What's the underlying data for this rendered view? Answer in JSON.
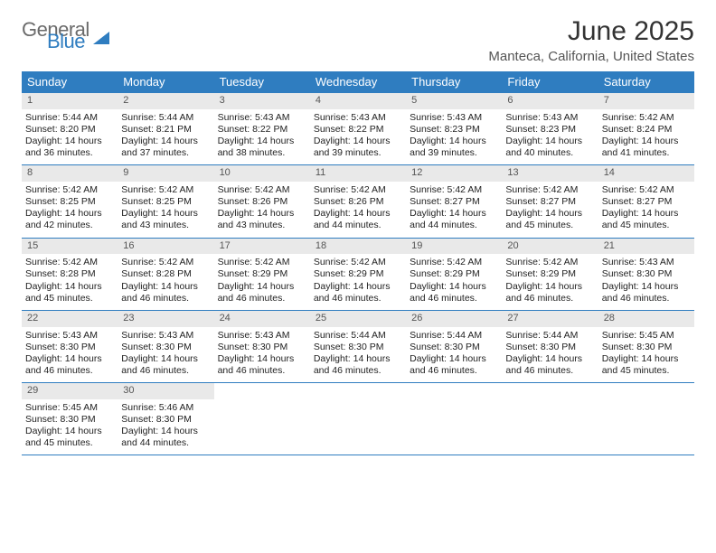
{
  "logo": {
    "word1": "General",
    "word2": "Blue"
  },
  "title": "June 2025",
  "location": "Manteca, California, United States",
  "colors": {
    "header_bg": "#2f7dc0",
    "header_text": "#ffffff",
    "daynum_bg": "#e9e9e9",
    "border": "#2f7dc0",
    "logo_gray": "#6b6b6b",
    "logo_blue": "#2f7dc0"
  },
  "typography": {
    "title_fontsize": 30,
    "location_fontsize": 15,
    "dow_fontsize": 13,
    "cell_fontsize": 10.5
  },
  "days_of_week": [
    "Sunday",
    "Monday",
    "Tuesday",
    "Wednesday",
    "Thursday",
    "Friday",
    "Saturday"
  ],
  "weeks": [
    [
      {
        "n": "1",
        "sr": "Sunrise: 5:44 AM",
        "ss": "Sunset: 8:20 PM",
        "dl": "Daylight: 14 hours and 36 minutes."
      },
      {
        "n": "2",
        "sr": "Sunrise: 5:44 AM",
        "ss": "Sunset: 8:21 PM",
        "dl": "Daylight: 14 hours and 37 minutes."
      },
      {
        "n": "3",
        "sr": "Sunrise: 5:43 AM",
        "ss": "Sunset: 8:22 PM",
        "dl": "Daylight: 14 hours and 38 minutes."
      },
      {
        "n": "4",
        "sr": "Sunrise: 5:43 AM",
        "ss": "Sunset: 8:22 PM",
        "dl": "Daylight: 14 hours and 39 minutes."
      },
      {
        "n": "5",
        "sr": "Sunrise: 5:43 AM",
        "ss": "Sunset: 8:23 PM",
        "dl": "Daylight: 14 hours and 39 minutes."
      },
      {
        "n": "6",
        "sr": "Sunrise: 5:43 AM",
        "ss": "Sunset: 8:23 PM",
        "dl": "Daylight: 14 hours and 40 minutes."
      },
      {
        "n": "7",
        "sr": "Sunrise: 5:42 AM",
        "ss": "Sunset: 8:24 PM",
        "dl": "Daylight: 14 hours and 41 minutes."
      }
    ],
    [
      {
        "n": "8",
        "sr": "Sunrise: 5:42 AM",
        "ss": "Sunset: 8:25 PM",
        "dl": "Daylight: 14 hours and 42 minutes."
      },
      {
        "n": "9",
        "sr": "Sunrise: 5:42 AM",
        "ss": "Sunset: 8:25 PM",
        "dl": "Daylight: 14 hours and 43 minutes."
      },
      {
        "n": "10",
        "sr": "Sunrise: 5:42 AM",
        "ss": "Sunset: 8:26 PM",
        "dl": "Daylight: 14 hours and 43 minutes."
      },
      {
        "n": "11",
        "sr": "Sunrise: 5:42 AM",
        "ss": "Sunset: 8:26 PM",
        "dl": "Daylight: 14 hours and 44 minutes."
      },
      {
        "n": "12",
        "sr": "Sunrise: 5:42 AM",
        "ss": "Sunset: 8:27 PM",
        "dl": "Daylight: 14 hours and 44 minutes."
      },
      {
        "n": "13",
        "sr": "Sunrise: 5:42 AM",
        "ss": "Sunset: 8:27 PM",
        "dl": "Daylight: 14 hours and 45 minutes."
      },
      {
        "n": "14",
        "sr": "Sunrise: 5:42 AM",
        "ss": "Sunset: 8:27 PM",
        "dl": "Daylight: 14 hours and 45 minutes."
      }
    ],
    [
      {
        "n": "15",
        "sr": "Sunrise: 5:42 AM",
        "ss": "Sunset: 8:28 PM",
        "dl": "Daylight: 14 hours and 45 minutes."
      },
      {
        "n": "16",
        "sr": "Sunrise: 5:42 AM",
        "ss": "Sunset: 8:28 PM",
        "dl": "Daylight: 14 hours and 46 minutes."
      },
      {
        "n": "17",
        "sr": "Sunrise: 5:42 AM",
        "ss": "Sunset: 8:29 PM",
        "dl": "Daylight: 14 hours and 46 minutes."
      },
      {
        "n": "18",
        "sr": "Sunrise: 5:42 AM",
        "ss": "Sunset: 8:29 PM",
        "dl": "Daylight: 14 hours and 46 minutes."
      },
      {
        "n": "19",
        "sr": "Sunrise: 5:42 AM",
        "ss": "Sunset: 8:29 PM",
        "dl": "Daylight: 14 hours and 46 minutes."
      },
      {
        "n": "20",
        "sr": "Sunrise: 5:42 AM",
        "ss": "Sunset: 8:29 PM",
        "dl": "Daylight: 14 hours and 46 minutes."
      },
      {
        "n": "21",
        "sr": "Sunrise: 5:43 AM",
        "ss": "Sunset: 8:30 PM",
        "dl": "Daylight: 14 hours and 46 minutes."
      }
    ],
    [
      {
        "n": "22",
        "sr": "Sunrise: 5:43 AM",
        "ss": "Sunset: 8:30 PM",
        "dl": "Daylight: 14 hours and 46 minutes."
      },
      {
        "n": "23",
        "sr": "Sunrise: 5:43 AM",
        "ss": "Sunset: 8:30 PM",
        "dl": "Daylight: 14 hours and 46 minutes."
      },
      {
        "n": "24",
        "sr": "Sunrise: 5:43 AM",
        "ss": "Sunset: 8:30 PM",
        "dl": "Daylight: 14 hours and 46 minutes."
      },
      {
        "n": "25",
        "sr": "Sunrise: 5:44 AM",
        "ss": "Sunset: 8:30 PM",
        "dl": "Daylight: 14 hours and 46 minutes."
      },
      {
        "n": "26",
        "sr": "Sunrise: 5:44 AM",
        "ss": "Sunset: 8:30 PM",
        "dl": "Daylight: 14 hours and 46 minutes."
      },
      {
        "n": "27",
        "sr": "Sunrise: 5:44 AM",
        "ss": "Sunset: 8:30 PM",
        "dl": "Daylight: 14 hours and 46 minutes."
      },
      {
        "n": "28",
        "sr": "Sunrise: 5:45 AM",
        "ss": "Sunset: 8:30 PM",
        "dl": "Daylight: 14 hours and 45 minutes."
      }
    ],
    [
      {
        "n": "29",
        "sr": "Sunrise: 5:45 AM",
        "ss": "Sunset: 8:30 PM",
        "dl": "Daylight: 14 hours and 45 minutes."
      },
      {
        "n": "30",
        "sr": "Sunrise: 5:46 AM",
        "ss": "Sunset: 8:30 PM",
        "dl": "Daylight: 14 hours and 44 minutes."
      },
      {
        "empty": true
      },
      {
        "empty": true
      },
      {
        "empty": true
      },
      {
        "empty": true
      },
      {
        "empty": true
      }
    ]
  ]
}
